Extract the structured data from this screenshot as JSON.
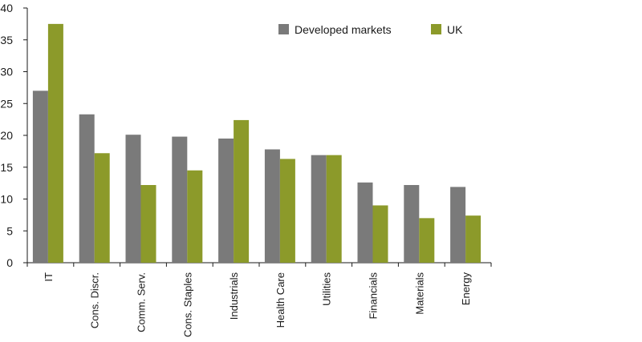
{
  "chart_data": {
    "type": "bar",
    "categories": [
      "IT",
      "Cons. Discr.",
      "Comm. Serv.",
      "Cons. Staples",
      "Industrials",
      "Health Care",
      "Utilities",
      "Financials",
      "Materials",
      "Energy"
    ],
    "series": [
      {
        "name": "Developed markets",
        "values": [
          27.0,
          23.3,
          20.1,
          19.8,
          19.5,
          17.8,
          16.9,
          12.6,
          12.2,
          11.9
        ]
      },
      {
        "name": "UK",
        "values": [
          37.5,
          17.2,
          12.2,
          14.5,
          22.4,
          16.3,
          16.9,
          9.0,
          7.0,
          7.4
        ]
      }
    ],
    "yticks": [
      "0",
      "5",
      "10",
      "15",
      "20",
      "25",
      "30",
      "35",
      "40"
    ],
    "ylim": [
      0,
      40
    ],
    "grid": false,
    "legend_position": "top-right",
    "colors": {
      "Developed markets": "#7a7a7a",
      "UK": "#8c9a2a",
      "axis": "#1a1a1a"
    }
  }
}
